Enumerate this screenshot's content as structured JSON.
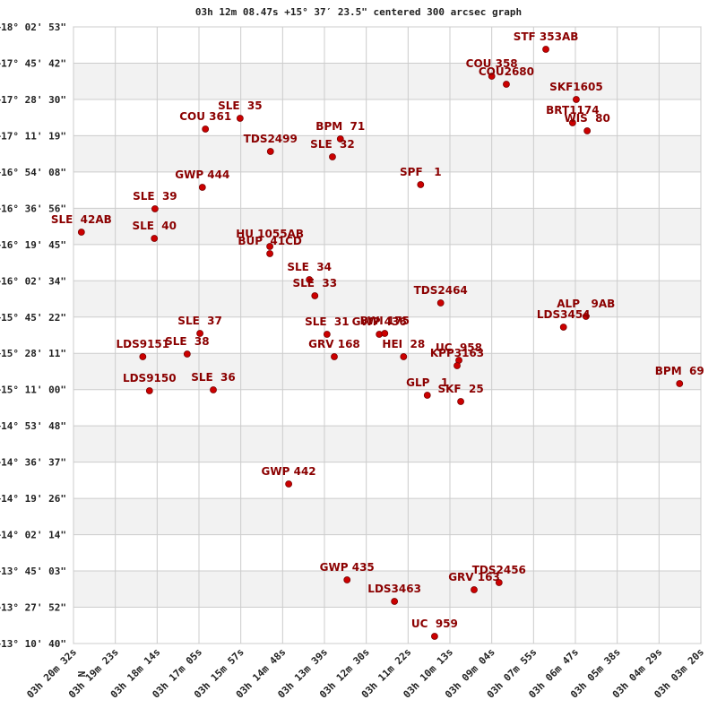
{
  "chart_data": {
    "type": "scatter",
    "title": "03h 12m 08.47s +15° 37′ 23.5\" centered 300 arcsec graph",
    "direction_label": "N",
    "xlim": [
      12032,
      11000
    ],
    "ylim": [
      47440,
      64973
    ],
    "xticks": [
      {
        "value": 12032,
        "label": "03h 20m 32s"
      },
      {
        "value": 11963.2,
        "label": "03h 19m 23s"
      },
      {
        "value": 11894.4,
        "label": "03h 18m 14s"
      },
      {
        "value": 11825.6,
        "label": "03h 17m 05s"
      },
      {
        "value": 11756.8,
        "label": "03h 15m 57s"
      },
      {
        "value": 11688,
        "label": "03h 14m 48s"
      },
      {
        "value": 11619.2,
        "label": "03h 13m 39s"
      },
      {
        "value": 11550.4,
        "label": "03h 12m 30s"
      },
      {
        "value": 11481.6,
        "label": "03h 11m 22s"
      },
      {
        "value": 11412.8,
        "label": "03h 10m 13s"
      },
      {
        "value": 11344,
        "label": "03h 09m 04s"
      },
      {
        "value": 11275.2,
        "label": "03h 07m 55s"
      },
      {
        "value": 11206.4,
        "label": "03h 06m 47s"
      },
      {
        "value": 11137.6,
        "label": "03h 05m 38s"
      },
      {
        "value": 11068.8,
        "label": "03h 04m 29s"
      },
      {
        "value": 11000,
        "label": "03h 03m 20s"
      }
    ],
    "yticks": [
      {
        "value": 64973,
        "label": "+18° 02' 53\""
      },
      {
        "value": 63941.6,
        "label": "+17° 45' 42\""
      },
      {
        "value": 62910.3,
        "label": "+17° 28' 30\""
      },
      {
        "value": 61878.9,
        "label": "+17° 11' 19\""
      },
      {
        "value": 60847.6,
        "label": "+16° 54' 08\""
      },
      {
        "value": 59816.2,
        "label": "+16° 36' 56\""
      },
      {
        "value": 58784.9,
        "label": "+16° 19' 45\""
      },
      {
        "value": 57753.5,
        "label": "+16° 02' 34\""
      },
      {
        "value": 56722.2,
        "label": "+15° 45' 22\""
      },
      {
        "value": 55690.8,
        "label": "+15° 28' 11\""
      },
      {
        "value": 54659.5,
        "label": "+15° 11' 00\""
      },
      {
        "value": 53628.1,
        "label": "+14° 53' 48\""
      },
      {
        "value": 52596.8,
        "label": "+14° 36' 37\""
      },
      {
        "value": 51565.4,
        "label": "+14° 19' 26\""
      },
      {
        "value": 50534.1,
        "label": "+14° 02' 14\""
      },
      {
        "value": 49502.7,
        "label": "+13° 45' 03\""
      },
      {
        "value": 48471.4,
        "label": "+13° 27' 52\""
      },
      {
        "value": 47440,
        "label": "+13° 10' 40\""
      }
    ],
    "grid": true,
    "series": [
      {
        "color": "#cc0000",
        "labels": [
          "STF 353AB",
          "COU 358",
          "COU2680",
          "SKF1605",
          "BRT1174",
          "WIS  80",
          "SLE  35",
          "COU 361",
          "BPM  71",
          "TDS2499",
          "SLE  32",
          "SPF   1",
          "GWP 444",
          "SLE  39",
          "SLE  42AB",
          "SLE  40",
          "HU 1055AB",
          "BUP  41CD",
          "SLE  34",
          "SLE  33",
          "TDS2464",
          "ALP   9AB",
          "LDS3454",
          "SLE  31",
          "GWP 436",
          "BWI 175",
          "SLE  37",
          "SLE  38",
          "LDS9151",
          "GRV 168",
          "HEI  28",
          "UC  958",
          "KPP3163",
          "BPM  69",
          "LDS9150",
          "SLE  36",
          "GLP   1",
          "SKF  25",
          "GWP 442",
          "GWP 435",
          "TDS2456",
          "GRV 163",
          "LDS3463",
          "UC  959"
        ],
        "x": [
          11255,
          11344,
          11320,
          11205,
          11211,
          11187,
          11758,
          11815,
          11593,
          11708,
          11606,
          11461,
          11820,
          11898,
          12019,
          11899,
          11709,
          11709,
          11644,
          11635,
          11428,
          11189,
          11226,
          11615,
          11529,
          11520,
          11824,
          11845,
          11918,
          11603,
          11489,
          11398,
          11401,
          11035,
          11907,
          11802,
          11450,
          11395,
          11678,
          11582,
          11332,
          11373,
          11504,
          11438
        ],
        "values": [
          64336,
          63571,
          63342,
          62909,
          62246,
          62017,
          62374,
          62068,
          61787,
          61431,
          61278,
          60488,
          60411,
          59800,
          59137,
          58959,
          58729,
          58526,
          57787,
          57328,
          57124,
          56742,
          56436,
          56232,
          56232,
          56257,
          56257,
          55671,
          55595,
          55595,
          55595,
          55493,
          55340,
          54830,
          54627,
          54652,
          54499,
          54321,
          51976,
          49249,
          49173,
          48969,
          48638,
          47644
        ]
      }
    ]
  }
}
